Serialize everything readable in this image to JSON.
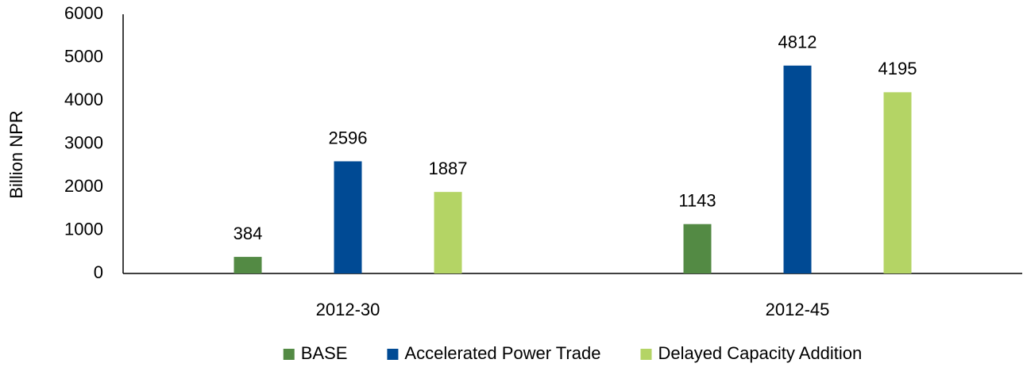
{
  "chart_data": {
    "type": "bar",
    "y_label": "Billion NPR",
    "categories": [
      "2012-30",
      "2012-45"
    ],
    "series": [
      {
        "name": "BASE",
        "color": "#538a44",
        "values": [
          384,
          1143
        ]
      },
      {
        "name": "Accelerated Power Trade",
        "color": "#004a94",
        "values": [
          2596,
          4812
        ]
      },
      {
        "name": "Delayed Capacity Addition",
        "color": "#b4d465",
        "values": [
          1887,
          4195
        ]
      }
    ],
    "ylim": [
      0,
      6000
    ],
    "yticks": [
      0,
      1000,
      2000,
      3000,
      4000,
      5000,
      6000
    ],
    "grid": false,
    "legend": "bottom"
  }
}
